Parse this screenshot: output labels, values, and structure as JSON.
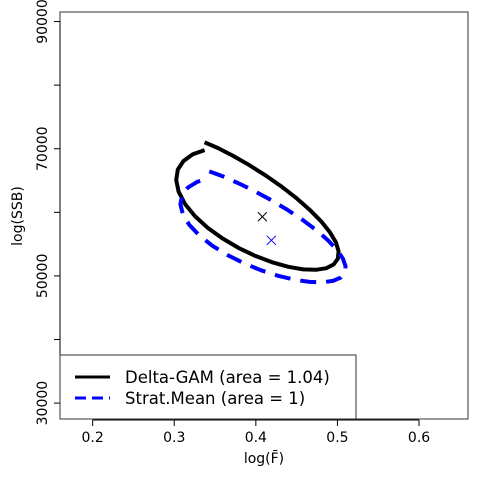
{
  "chart_data": {
    "type": "scatter",
    "xlabel": "log(F̄)",
    "ylabel": "log(SSB)",
    "xlim": [
      0.16,
      0.66
    ],
    "ylim": [
      27500,
      91500
    ],
    "x_ticks": [
      0.2,
      0.3,
      0.4,
      0.5,
      0.6
    ],
    "x_tick_labels": [
      "0.2",
      "0.3",
      "0.4",
      "0.5",
      "0.6"
    ],
    "y_ticks": [
      30000,
      40000,
      50000,
      60000,
      70000,
      80000,
      90000
    ],
    "y_tick_labels": [
      "30000",
      "",
      "50000",
      "",
      "70000",
      "",
      "90000"
    ],
    "legend_position": "bottom-left",
    "grid": false,
    "series": [
      {
        "name": "Delta-GAM (area = 1.04)",
        "color": "#000000",
        "line_style": "solid",
        "center": [
          0.408,
          59300
        ],
        "ellipse": [
          [
            0.3372,
            71010
          ],
          [
            0.3537,
            70100
          ],
          [
            0.3717,
            68915
          ],
          [
            0.3911,
            67492
          ],
          [
            0.411,
            65877
          ],
          [
            0.4307,
            64123
          ],
          [
            0.4492,
            62284
          ],
          [
            0.4659,
            60418
          ],
          [
            0.48,
            58586
          ],
          [
            0.4909,
            56845
          ],
          [
            0.4982,
            55249
          ],
          [
            0.5014,
            53848
          ],
          [
            0.5004,
            52687
          ],
          [
            0.4953,
            51802
          ],
          [
            0.4863,
            51220
          ],
          [
            0.4737,
            50960
          ],
          [
            0.458,
            51030
          ],
          [
            0.4399,
            51427
          ],
          [
            0.4201,
            52139
          ],
          [
            0.3993,
            53142
          ],
          [
            0.3788,
            54408
          ],
          [
            0.359,
            55903
          ],
          [
            0.3409,
            57584
          ],
          [
            0.3253,
            59404
          ],
          [
            0.3132,
            61315
          ],
          [
            0.3054,
            63260
          ],
          [
            0.3024,
            65082
          ],
          [
            0.3044,
            66710
          ],
          [
            0.3114,
            68077
          ],
          [
            0.3228,
            69127
          ],
          [
            0.3372,
            69781
          ]
        ]
      },
      {
        "name": "Strat.Mean (area = 1)",
        "color": "#0000ff",
        "line_style": "dashed",
        "center": [
          0.419,
          55600
        ],
        "ellipse": [
          [
            0.343,
            66440
          ],
          [
            0.3597,
            65648
          ],
          [
            0.378,
            64617
          ],
          [
            0.3978,
            63378
          ],
          [
            0.418,
            61973
          ],
          [
            0.4381,
            60446
          ],
          [
            0.4569,
            58846
          ],
          [
            0.4738,
            57222
          ],
          [
            0.4882,
            55627
          ],
          [
            0.4993,
            54112
          ],
          [
            0.5067,
            52723
          ],
          [
            0.51,
            51504
          ],
          [
            0.5089,
            50493
          ],
          [
            0.5037,
            49723
          ],
          [
            0.4946,
            49217
          ],
          [
            0.4818,
            48990
          ],
          [
            0.4658,
            49052
          ],
          [
            0.4474,
            49398
          ],
          [
            0.4273,
            50018
          ],
          [
            0.4061,
            50891
          ],
          [
            0.3853,
            51992
          ],
          [
            0.3652,
            53293
          ],
          [
            0.3467,
            54756
          ],
          [
            0.3309,
            56341
          ],
          [
            0.3186,
            58004
          ],
          [
            0.3106,
            59697
          ],
          [
            0.3076,
            61282
          ],
          [
            0.3096,
            62700
          ],
          [
            0.3167,
            63890
          ],
          [
            0.3283,
            64804
          ],
          [
            0.343,
            65373
          ]
        ]
      }
    ]
  }
}
